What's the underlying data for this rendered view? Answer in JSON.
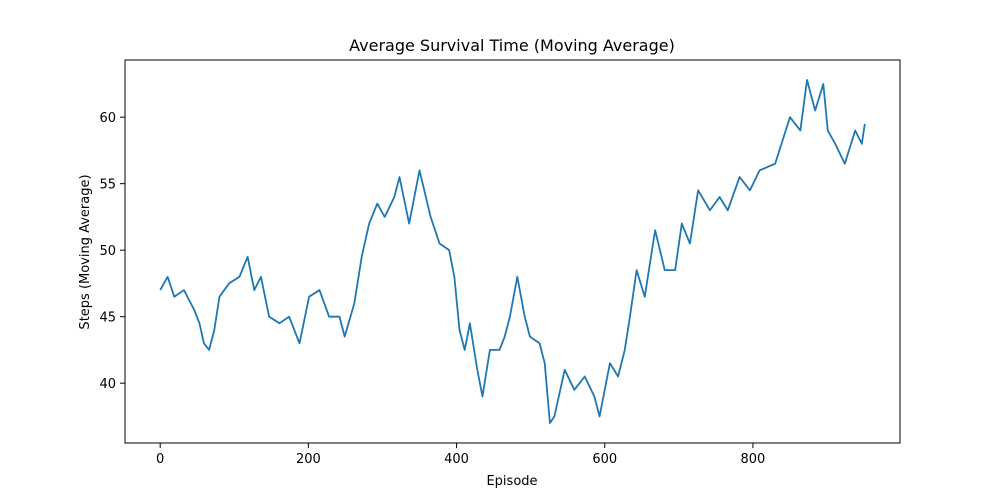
{
  "chart_data": {
    "type": "line",
    "title": "Average Survival Time (Moving Average)",
    "xlabel": "Episode",
    "ylabel": "Steps (Moving Average)",
    "x": [
      0,
      10,
      19,
      32,
      46,
      53,
      59,
      66,
      73,
      80,
      93,
      107,
      118,
      127,
      136,
      147,
      161,
      174,
      188,
      201,
      215,
      228,
      242,
      249,
      262,
      272,
      282,
      293,
      303,
      316,
      323,
      336,
      350,
      365,
      377,
      390,
      397,
      404,
      411,
      418,
      428,
      435,
      445,
      458,
      465,
      472,
      482,
      492,
      499,
      512,
      519,
      526,
      532,
      546,
      559,
      573,
      586,
      593,
      607,
      618,
      627,
      634,
      643,
      654,
      668,
      681,
      695,
      704,
      715,
      726,
      742,
      755,
      766,
      782,
      796,
      809,
      830,
      850,
      864,
      873,
      884,
      895,
      901,
      911,
      924,
      938,
      947,
      951
    ],
    "series": [
      {
        "name": "Moving Average",
        "color": "#1f77b4",
        "values": [
          47,
          48,
          46.5,
          47,
          45.5,
          44.5,
          43,
          42.5,
          44,
          46.5,
          47.5,
          48,
          49.5,
          47,
          48,
          45,
          44.5,
          45,
          43,
          46.5,
          47,
          45,
          45,
          43.5,
          46,
          49.5,
          52,
          53.5,
          52.5,
          54,
          55.5,
          52,
          56,
          52.5,
          50.5,
          50,
          48,
          44,
          42.5,
          44.5,
          41,
          39,
          42.5,
          42.5,
          43.5,
          45,
          48,
          45,
          43.5,
          43,
          41.5,
          37,
          37.5,
          41,
          39.5,
          40.5,
          39,
          37.5,
          41.5,
          40.5,
          42.5,
          45,
          48.5,
          46.5,
          51.5,
          48.5,
          48.5,
          52,
          50.5,
          54.5,
          53,
          54,
          53,
          55.5,
          54.5,
          56,
          56.5,
          60,
          59,
          62.8,
          60.5,
          62.5,
          59,
          58,
          56.5,
          59,
          58,
          59.5
        ]
      }
    ],
    "xlim": [
      -47.5,
      998.5
    ],
    "xticks": [
      0,
      200,
      400,
      600,
      800
    ],
    "ylim": [
      35.5,
      64.3
    ],
    "yticks": [
      40,
      45,
      50,
      55,
      60
    ]
  }
}
